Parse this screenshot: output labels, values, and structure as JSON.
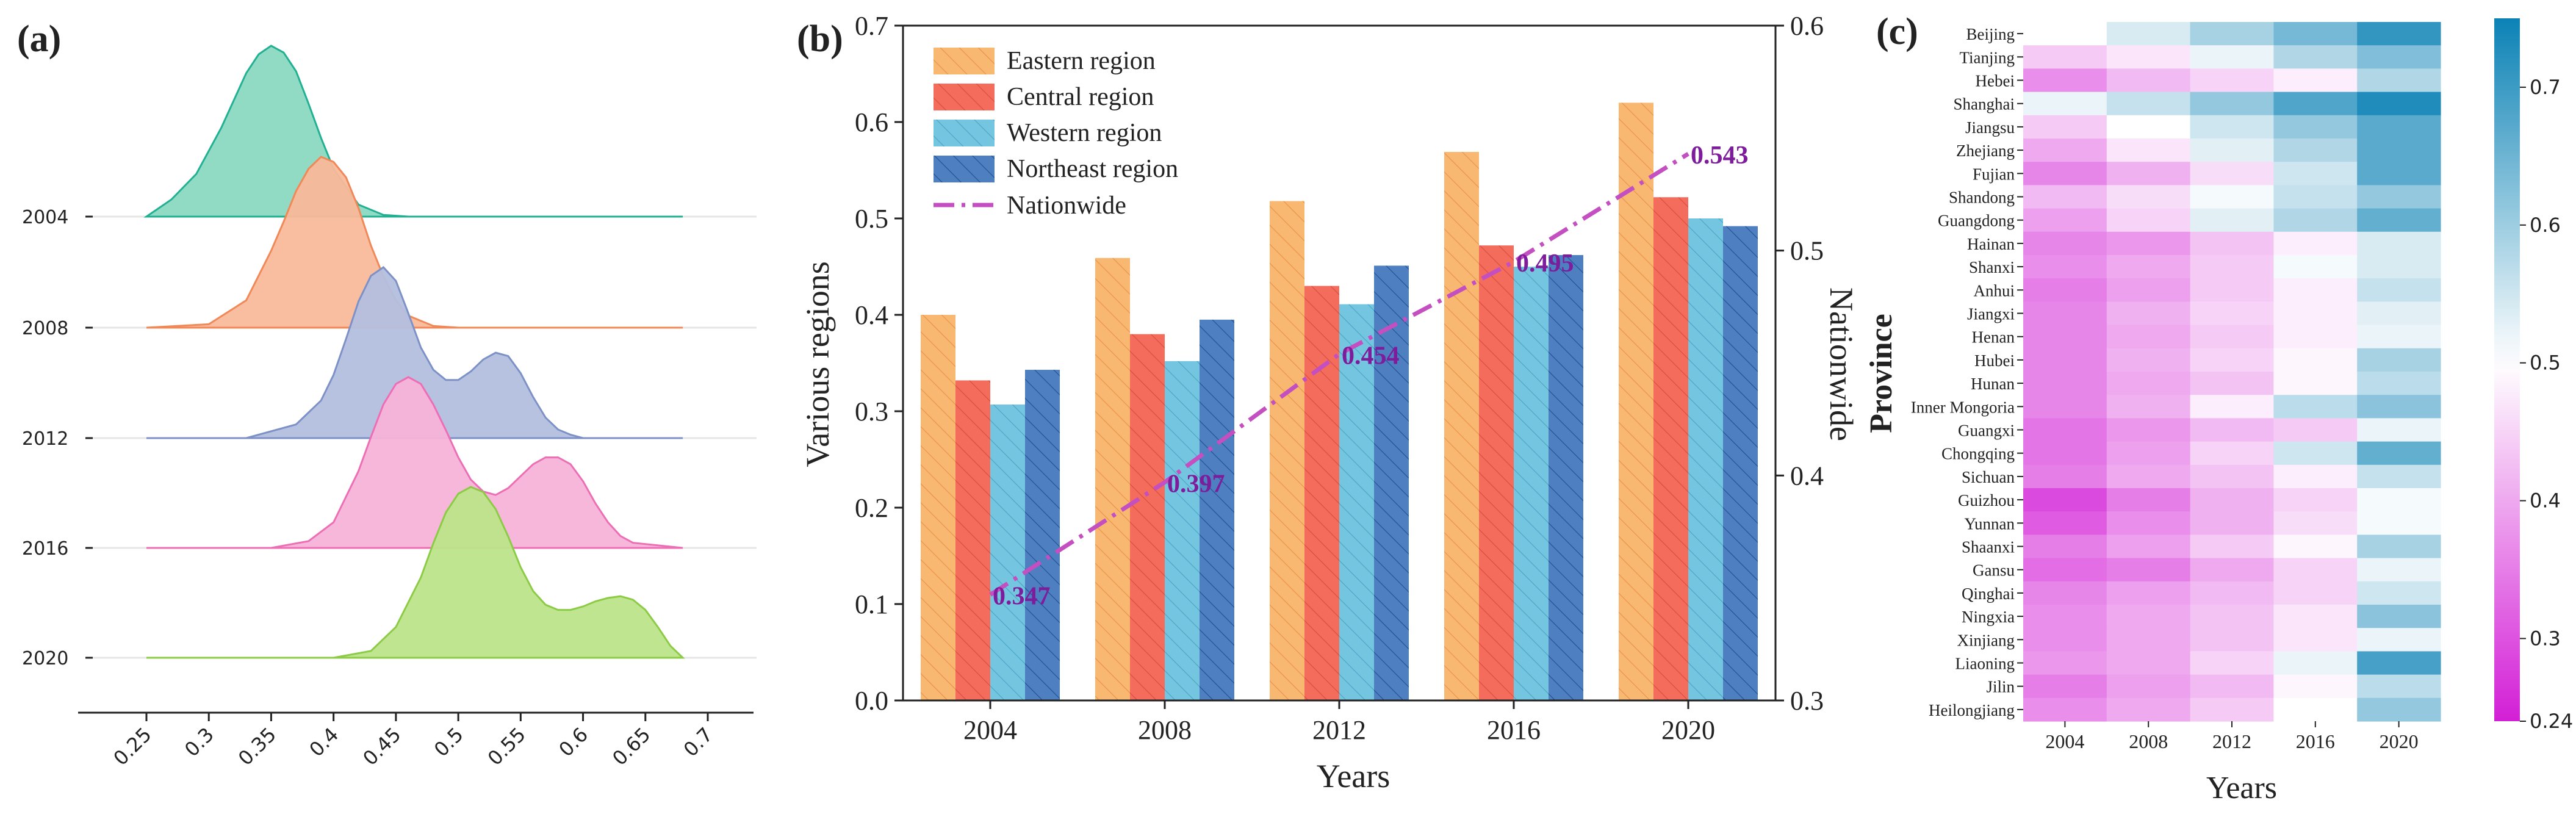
{
  "panel_labels": {
    "a": "(a)",
    "b": "(b)",
    "c": "(c)"
  },
  "colors": {
    "eastern": "#f9b872",
    "central": "#f46c5c",
    "western": "#74c5df",
    "northeast": "#4e7fc1",
    "nationwide": "#c34fc0",
    "label_purple": "#7d1d9c",
    "heat_low": "#d31fd6",
    "heat_mid": "#ffffff",
    "heat_high": "#0b82b5"
  },
  "chart_data": [
    {
      "id": "a",
      "type": "area",
      "subtype": "ridgeline density",
      "xlim": [
        0.25,
        0.68
      ],
      "x_ticks": [
        "0.25",
        "0.3",
        "0.35",
        "0.4",
        "0.45",
        "0.5",
        "0.55",
        "0.6",
        "0.65",
        "0.7"
      ],
      "series": [
        {
          "name": "2004",
          "color": "#8bd9c2",
          "edge": "#22b092",
          "x": [
            0.25,
            0.27,
            0.29,
            0.31,
            0.32,
            0.33,
            0.34,
            0.35,
            0.36,
            0.37,
            0.38,
            0.39,
            0.4,
            0.42,
            0.44,
            0.46,
            0.48,
            0.5,
            0.68
          ],
          "y": [
            0.0,
            0.1,
            0.25,
            0.52,
            0.68,
            0.84,
            0.95,
            1.0,
            0.96,
            0.85,
            0.66,
            0.46,
            0.28,
            0.07,
            0.01,
            0.0,
            0.0,
            0.0,
            0.0
          ]
        },
        {
          "name": "2008",
          "color": "#f9b99a",
          "edge": "#f08858",
          "x": [
            0.25,
            0.3,
            0.33,
            0.35,
            0.36,
            0.37,
            0.38,
            0.39,
            0.4,
            0.41,
            0.42,
            0.43,
            0.44,
            0.45,
            0.46,
            0.48,
            0.5,
            0.68
          ],
          "y": [
            0.0,
            0.02,
            0.16,
            0.45,
            0.62,
            0.8,
            0.93,
            1.0,
            0.97,
            0.88,
            0.7,
            0.48,
            0.3,
            0.16,
            0.07,
            0.01,
            0.0,
            0.0
          ]
        },
        {
          "name": "2012",
          "color": "#b3bfdf",
          "edge": "#7d91c7",
          "x": [
            0.25,
            0.33,
            0.37,
            0.39,
            0.4,
            0.41,
            0.42,
            0.43,
            0.44,
            0.45,
            0.46,
            0.47,
            0.48,
            0.49,
            0.5,
            0.51,
            0.52,
            0.53,
            0.54,
            0.55,
            0.56,
            0.57,
            0.58,
            0.59,
            0.6,
            0.68
          ],
          "y": [
            0.0,
            0.0,
            0.08,
            0.22,
            0.37,
            0.58,
            0.8,
            0.95,
            1.0,
            0.92,
            0.73,
            0.53,
            0.4,
            0.34,
            0.34,
            0.39,
            0.46,
            0.5,
            0.48,
            0.38,
            0.24,
            0.12,
            0.05,
            0.02,
            0.0,
            0.0
          ]
        },
        {
          "name": "2016",
          "color": "#f7b3d9",
          "edge": "#ec6fb5",
          "x": [
            0.25,
            0.35,
            0.38,
            0.4,
            0.42,
            0.43,
            0.44,
            0.45,
            0.46,
            0.47,
            0.48,
            0.49,
            0.5,
            0.51,
            0.52,
            0.53,
            0.54,
            0.55,
            0.56,
            0.57,
            0.58,
            0.59,
            0.6,
            0.61,
            0.62,
            0.63,
            0.64,
            0.68
          ],
          "y": [
            0.0,
            0.0,
            0.04,
            0.15,
            0.45,
            0.65,
            0.84,
            0.96,
            1.0,
            0.96,
            0.84,
            0.69,
            0.53,
            0.4,
            0.33,
            0.31,
            0.35,
            0.42,
            0.49,
            0.53,
            0.53,
            0.49,
            0.39,
            0.26,
            0.15,
            0.07,
            0.03,
            0.0
          ]
        },
        {
          "name": "2020",
          "color": "#bde48b",
          "edge": "#8ccb45",
          "x": [
            0.25,
            0.4,
            0.43,
            0.45,
            0.47,
            0.48,
            0.49,
            0.5,
            0.51,
            0.52,
            0.53,
            0.54,
            0.55,
            0.56,
            0.57,
            0.58,
            0.59,
            0.6,
            0.61,
            0.62,
            0.63,
            0.64,
            0.65,
            0.66,
            0.67,
            0.68
          ],
          "y": [
            0.0,
            0.0,
            0.04,
            0.18,
            0.47,
            0.67,
            0.85,
            0.96,
            1.0,
            0.97,
            0.87,
            0.71,
            0.53,
            0.39,
            0.31,
            0.28,
            0.28,
            0.3,
            0.33,
            0.35,
            0.36,
            0.34,
            0.28,
            0.18,
            0.07,
            0.0
          ]
        }
      ]
    },
    {
      "id": "b",
      "type": "bar",
      "categories": [
        "2004",
        "2008",
        "2012",
        "2016",
        "2020"
      ],
      "xlabel": "Years",
      "ylabel": "Various regions",
      "y2label": "Nationwide",
      "ylim": [
        0,
        0.7
      ],
      "y_ticks": [
        "0.0",
        "0.1",
        "0.2",
        "0.3",
        "0.4",
        "0.5",
        "0.6",
        "0.7"
      ],
      "y2lim": [
        0.3,
        0.6
      ],
      "y2_ticks": [
        "0.3",
        "0.4",
        "0.5",
        "0.6"
      ],
      "legend_position": "top-left",
      "series": [
        {
          "name": "Eastern region",
          "key": "eastern",
          "values": [
            0.4,
            0.459,
            0.518,
            0.569,
            0.62
          ]
        },
        {
          "name": "Central region",
          "key": "central",
          "values": [
            0.332,
            0.38,
            0.43,
            0.472,
            0.522
          ]
        },
        {
          "name": "Western region",
          "key": "western",
          "values": [
            0.307,
            0.352,
            0.411,
            0.45,
            0.5
          ]
        },
        {
          "name": "Northeast region",
          "key": "northeast",
          "values": [
            0.343,
            0.395,
            0.451,
            0.462,
            0.492
          ]
        }
      ],
      "line": {
        "name": "Nationwide",
        "axis": "right",
        "values": [
          0.347,
          0.397,
          0.454,
          0.495,
          0.543
        ],
        "labels": [
          "0.347",
          "0.397",
          "0.454",
          "0.495",
          "0.543"
        ]
      }
    },
    {
      "id": "c",
      "type": "heatmap",
      "xlabel": "Years",
      "ylabel": "Province",
      "x": [
        "2004",
        "2008",
        "2012",
        "2016",
        "2020"
      ],
      "y": [
        "Beijing",
        "Tianjing",
        "Hebei",
        "Shanghai",
        "Jiangsu",
        "Zhejiang",
        "Fujian",
        "Shandong",
        "Guangdong",
        "Hainan",
        "Shanxi",
        "Anhui",
        "Jiangxi",
        "Henan",
        "Hubei",
        "Hunan",
        "Inner Mongoria",
        "Guangxi",
        "Chongqing",
        "Sichuan",
        "Guizhou",
        "Yunnan",
        "Shaanxi",
        "Gansu",
        "Qinghai",
        "Ningxia",
        "Xinjiang",
        "Liaoning",
        "Jilin",
        "Heilongjiang"
      ],
      "values": [
        [
          0.5,
          0.54,
          0.59,
          0.64,
          0.71
        ],
        [
          0.44,
          0.47,
          0.52,
          0.58,
          0.63
        ],
        [
          0.37,
          0.42,
          0.45,
          0.48,
          0.58
        ],
        [
          0.52,
          0.56,
          0.61,
          0.68,
          0.73
        ],
        [
          0.44,
          0.5,
          0.55,
          0.61,
          0.67
        ],
        [
          0.4,
          0.47,
          0.53,
          0.58,
          0.67
        ],
        [
          0.36,
          0.41,
          0.46,
          0.55,
          0.67
        ],
        [
          0.42,
          0.46,
          0.51,
          0.56,
          0.61
        ],
        [
          0.39,
          0.45,
          0.53,
          0.58,
          0.66
        ],
        [
          0.36,
          0.38,
          0.43,
          0.48,
          0.54
        ],
        [
          0.37,
          0.4,
          0.44,
          0.51,
          0.54
        ],
        [
          0.35,
          0.39,
          0.44,
          0.48,
          0.56
        ],
        [
          0.36,
          0.41,
          0.45,
          0.48,
          0.53
        ],
        [
          0.36,
          0.4,
          0.44,
          0.48,
          0.52
        ],
        [
          0.36,
          0.41,
          0.45,
          0.49,
          0.59
        ],
        [
          0.36,
          0.4,
          0.43,
          0.49,
          0.57
        ],
        [
          0.36,
          0.41,
          0.48,
          0.57,
          0.62
        ],
        [
          0.34,
          0.38,
          0.42,
          0.44,
          0.52
        ],
        [
          0.34,
          0.39,
          0.45,
          0.55,
          0.66
        ],
        [
          0.35,
          0.4,
          0.43,
          0.48,
          0.56
        ],
        [
          0.29,
          0.35,
          0.41,
          0.45,
          0.51
        ],
        [
          0.31,
          0.37,
          0.41,
          0.46,
          0.51
        ],
        [
          0.35,
          0.39,
          0.44,
          0.49,
          0.59
        ],
        [
          0.33,
          0.35,
          0.4,
          0.45,
          0.52
        ],
        [
          0.36,
          0.39,
          0.42,
          0.45,
          0.55
        ],
        [
          0.37,
          0.4,
          0.43,
          0.47,
          0.62
        ],
        [
          0.37,
          0.4,
          0.43,
          0.47,
          0.52
        ],
        [
          0.38,
          0.4,
          0.45,
          0.52,
          0.69
        ],
        [
          0.35,
          0.39,
          0.42,
          0.49,
          0.57
        ],
        [
          0.37,
          0.4,
          0.44,
          0.5,
          0.61
        ]
      ],
      "vmin": 0.24,
      "vmax": 0.75,
      "colorbar_ticks": [
        "0.24",
        "0.3",
        "0.4",
        "0.5",
        "0.6",
        "0.7"
      ]
    }
  ]
}
